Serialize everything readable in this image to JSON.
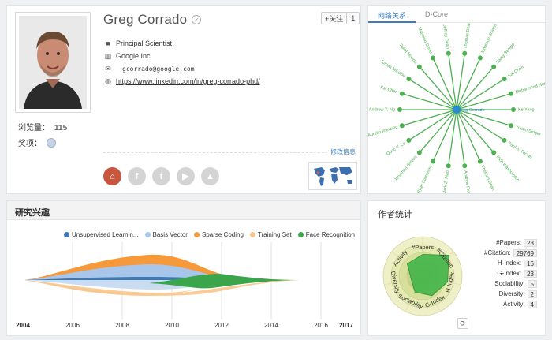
{
  "profile": {
    "name": "Greg Corrado",
    "follow_label": "+关注",
    "follow_count": "1",
    "position": "Principal Scientist",
    "org": "Google Inc",
    "email": "gcorrado@google.com",
    "homepage": "https://www.linkedin.com/in/greg-corrado-phd/",
    "views_label": "浏览量：",
    "views_count": "115",
    "awards_label": "奖项：",
    "edit_label": "修改信息",
    "icons": [
      "briefcase-icon",
      "building-icon",
      "envelope-icon",
      "globe-icon"
    ],
    "socials": [
      "home-icon",
      "facebook-icon",
      "twitter-icon",
      "youtube-icon",
      "graduation-cap-icon"
    ]
  },
  "network": {
    "tabs": [
      "网络关系",
      "D-Core"
    ],
    "center_label": "Greg Corrado",
    "nodes": [
      "Thomas Dean",
      "Jonathon Shlens",
      "Samy Bengio",
      "Kai Chen",
      "Mohammad Nor",
      "Ke Yang",
      "Yoram Singer",
      "Paul A. Tucker",
      "Rich Wasburgton",
      "Thomas Dean",
      "Andrew Frome",
      "Mark Z. Mao",
      "Ryan Sutskever",
      "Jonathon Shlens",
      "Quoc V. Le",
      "Marc Aurelio Ranzato",
      "Andrew Y. Ng",
      "Kai Chen",
      "Tomas Mikolov",
      "Rajat Monga",
      "Matthieu Devin",
      "Jeffrey Dean"
    ],
    "color": "#4caf50"
  },
  "interests": {
    "title": "研究兴趣",
    "legend": [
      {
        "name": "Unsupervised Learnin...",
        "color": "#3b78b5"
      },
      {
        "name": "Basis Vector",
        "color": "#a8c5ea"
      },
      {
        "name": "Sparse Coding",
        "color": "#f6993a"
      },
      {
        "name": "Training Set",
        "color": "#f8c58c"
      },
      {
        "name": "Face Recognition",
        "color": "#3aa54a"
      }
    ],
    "years": [
      "2004",
      "2006",
      "2008",
      "2010",
      "2012",
      "2014",
      "2016",
      "2017"
    ]
  },
  "stats": {
    "title": "作者统计",
    "radar_axes": [
      "#Papers",
      "#Citation",
      "H-Index",
      "G-Index",
      "Sociability",
      "Diversity",
      "Activity"
    ],
    "radar_values": [
      0.55,
      0.85,
      0.65,
      0.55,
      0.45,
      0.3,
      0.5
    ],
    "items": [
      {
        "label": "#Papers:",
        "value": "23"
      },
      {
        "label": "#Citation:",
        "value": "29769"
      },
      {
        "label": "H-Index:",
        "value": "16"
      },
      {
        "label": "G-Index:",
        "value": "23"
      },
      {
        "label": "Sociability:",
        "value": "5"
      },
      {
        "label": "Diversity:",
        "value": "2"
      },
      {
        "label": "Activity:",
        "value": "4"
      }
    ]
  }
}
